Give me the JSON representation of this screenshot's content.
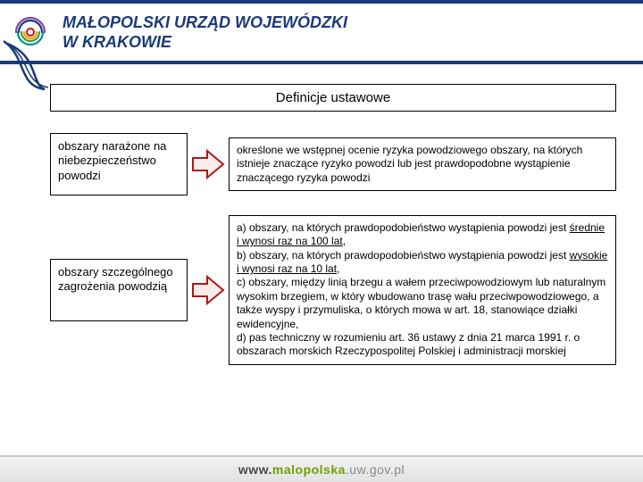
{
  "header": {
    "brand_line1": "MAŁOPOLSKI URZĄD WOJEWÓDZKI",
    "brand_line2": "W KRAKOWIE",
    "bar_color": "#1a3a7a",
    "swirl_colors": [
      "#d02a2a",
      "#f0a000",
      "#3aa03a",
      "#1a3a7a",
      "#8844aa",
      "#009090"
    ]
  },
  "content": {
    "title": "Definicje ustawowe",
    "rows": [
      {
        "term": "obszary narażone na niebezpieczeństwo powodzi",
        "definition_html": "określone we wstępnej ocenie ryzyka powodziowego obszary, na których istnieje znaczące ryzyko powodzi lub jest prawdopodobne wystąpienie znaczącego ryzyka powodzi"
      },
      {
        "term": "obszary szczególnego zagrożenia powodzią",
        "definition_html": "a) obszary, na których prawdopodobieństwo wystąpienia powodzi jest <span class=\"under\">średnie i wynosi raz na 100 lat</span>,<br>b) obszary, na których prawdopodobieństwo wystąpienia powodzi jest <span class=\"under\">wysokie i wynosi raz na 10 lat</span>,<br>c) obszary, między linią brzegu a wałem przeciwpowodziowym lub naturalnym wysokim brzegiem, w który wbudowano trasę wału przeciwpowodziowego, a także wyspy i przymuliska, o których mowa w art. 18, stanowiące działki ewidencyjne,<br>d) pas techniczny w rozumieniu art. 36 ustawy z dnia 21 marca 1991 r. o obszarach morskich Rzeczypospolitej Polskiej i administracji morskiej"
      }
    ],
    "arrow": {
      "stroke": "#b01818",
      "fill": "#fbecec",
      "stroke_width": 2
    }
  },
  "footer": {
    "prefix": "www.",
    "highlight": "malopolska",
    "suffix": ".uw.gov.pl"
  }
}
